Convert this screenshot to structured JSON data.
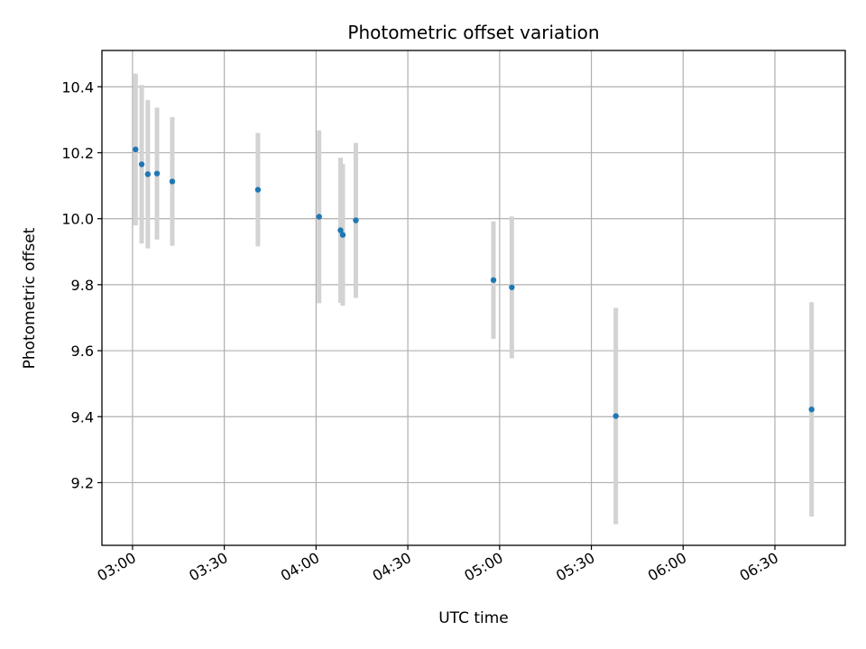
{
  "chart_data": {
    "type": "scatter",
    "title": "Photometric offset variation",
    "xlabel": "UTC time",
    "ylabel": "Photometric offset",
    "x_ticks": [
      "03:00",
      "03:30",
      "04:00",
      "04:30",
      "05:00",
      "05:30",
      "06:00",
      "06:30"
    ],
    "y_ticks": [
      "9.2",
      "9.4",
      "9.6",
      "9.8",
      "10.0",
      "10.2",
      "10.4"
    ],
    "xlim": [
      "02:50",
      "06:53"
    ],
    "ylim": [
      9.01,
      10.51
    ],
    "grid": true,
    "marker_color": "#1f77b4",
    "errorbar_color": "#d3d3d3",
    "points": [
      {
        "x": "03:01",
        "y": 10.21,
        "err": 0.23
      },
      {
        "x": "03:03",
        "y": 10.165,
        "err": 0.24
      },
      {
        "x": "03:05",
        "y": 10.135,
        "err": 0.225
      },
      {
        "x": "03:08",
        "y": 10.137,
        "err": 0.2
      },
      {
        "x": "03:13",
        "y": 10.113,
        "err": 0.195
      },
      {
        "x": "03:41",
        "y": 10.088,
        "err": 0.172
      },
      {
        "x": "04:01",
        "y": 10.006,
        "err": 0.262
      },
      {
        "x": "04:08",
        "y": 9.965,
        "err": 0.22
      },
      {
        "x": "04:08",
        "y": 9.951,
        "err": 0.215
      },
      {
        "x": "04:13",
        "y": 9.995,
        "err": 0.235
      },
      {
        "x": "04:58",
        "y": 9.814,
        "err": 0.178
      },
      {
        "x": "05:04",
        "y": 9.792,
        "err": 0.215
      },
      {
        "x": "05:38",
        "y": 9.402,
        "err": 0.328
      },
      {
        "x": "06:42",
        "y": 9.422,
        "err": 0.325
      }
    ]
  }
}
